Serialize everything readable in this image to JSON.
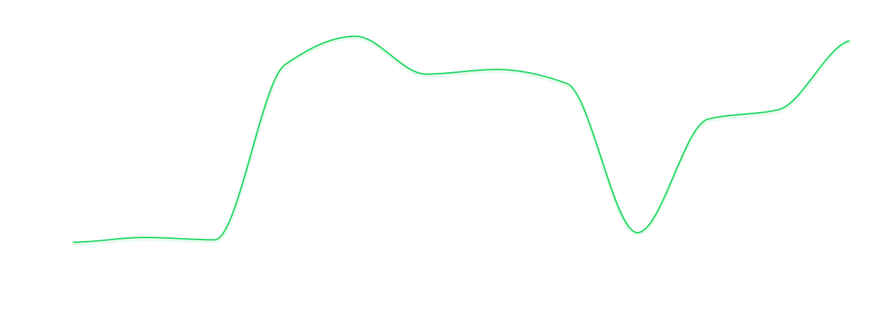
{
  "chart_data": {
    "type": "line",
    "title": "",
    "xlabel": "",
    "ylabel": "",
    "x": [
      0,
      1,
      2,
      3,
      4,
      5,
      6,
      7,
      8,
      9,
      10,
      11
    ],
    "series": [
      {
        "values": [
          11,
          13,
          12,
          86,
          98,
          82,
          84,
          78,
          15,
          63,
          67,
          96
        ]
      }
    ],
    "xlim": [
      0,
      11
    ],
    "ylim": [
      0,
      100
    ],
    "grid": false,
    "legend": "none",
    "colors": {
      "line": "#1ed760",
      "glow": "#7be89b",
      "background": "#ffffff"
    }
  }
}
